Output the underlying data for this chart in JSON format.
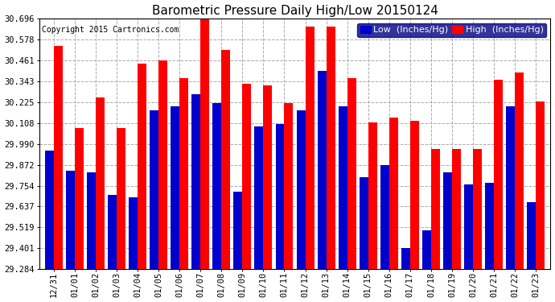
{
  "title": "Barometric Pressure Daily High/Low 20150124",
  "copyright": "Copyright 2015 Cartronics.com",
  "legend_low": "Low  (Inches/Hg)",
  "legend_high": "High  (Inches/Hg)",
  "dates": [
    "12/31",
    "01/01",
    "01/02",
    "01/03",
    "01/04",
    "01/05",
    "01/06",
    "01/07",
    "01/08",
    "01/09",
    "01/10",
    "01/11",
    "01/12",
    "01/13",
    "01/14",
    "01/15",
    "01/16",
    "01/17",
    "01/18",
    "01/19",
    "01/20",
    "01/21",
    "01/22",
    "01/23"
  ],
  "low": [
    29.95,
    29.84,
    29.83,
    29.7,
    29.69,
    30.18,
    30.2,
    30.27,
    30.22,
    29.72,
    30.09,
    30.1,
    30.18,
    30.4,
    30.2,
    29.8,
    29.87,
    29.4,
    29.5,
    29.83,
    29.76,
    29.77,
    30.2,
    29.66
  ],
  "high": [
    30.54,
    30.08,
    30.25,
    30.08,
    30.44,
    30.46,
    30.36,
    30.69,
    30.52,
    30.33,
    30.32,
    30.22,
    30.65,
    30.65,
    30.36,
    30.11,
    30.14,
    30.12,
    29.96,
    29.96,
    29.96,
    30.35,
    30.39,
    30.23
  ],
  "ylim_min": 29.284,
  "ylim_max": 30.696,
  "yticks": [
    29.284,
    29.401,
    29.519,
    29.637,
    29.754,
    29.872,
    29.99,
    30.108,
    30.225,
    30.343,
    30.461,
    30.578,
    30.696
  ],
  "bar_width": 0.42,
  "low_color": "#0000cc",
  "high_color": "#ff0000",
  "bg_color": "#ffffff",
  "grid_color": "#aaaaaa",
  "title_fontsize": 11,
  "tick_fontsize": 7.5,
  "legend_fontsize": 8,
  "figsize": [
    6.9,
    3.75
  ],
  "dpi": 100
}
